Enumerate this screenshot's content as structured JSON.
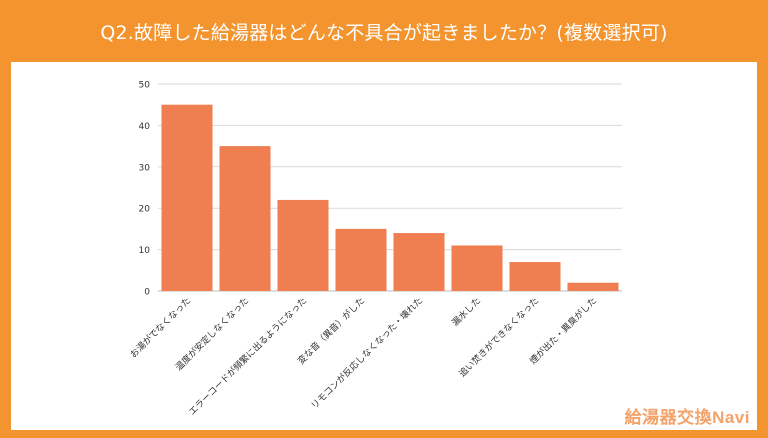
{
  "header": {
    "title": "Q2.故障した給湯器はどんな不具合が起きましたか？(複数選択可)"
  },
  "brand": {
    "logo_text": "給湯器交換Navi"
  },
  "colors": {
    "background": "#f3942f",
    "bar": "#ef7f51",
    "grid": "#d9d9d9",
    "axis_text": "#333333"
  },
  "chart_data": {
    "type": "bar",
    "title": "",
    "xlabel": "",
    "ylabel": "",
    "ylim": [
      0,
      50
    ],
    "yticks": [
      0,
      10,
      20,
      30,
      40,
      50
    ],
    "grid": true,
    "categories": [
      "お湯がでなくなった",
      "温度が安定しなくなった",
      "エラーコードが頻繁に出るようになった",
      "変な音（異音）がした",
      "リモコンが反応しなくなった・壊れた",
      "漏水した",
      "追い焚きができなくなった",
      "煙が出た・異臭がした"
    ],
    "values": [
      45,
      35,
      22,
      15,
      14,
      11,
      7,
      2
    ]
  }
}
